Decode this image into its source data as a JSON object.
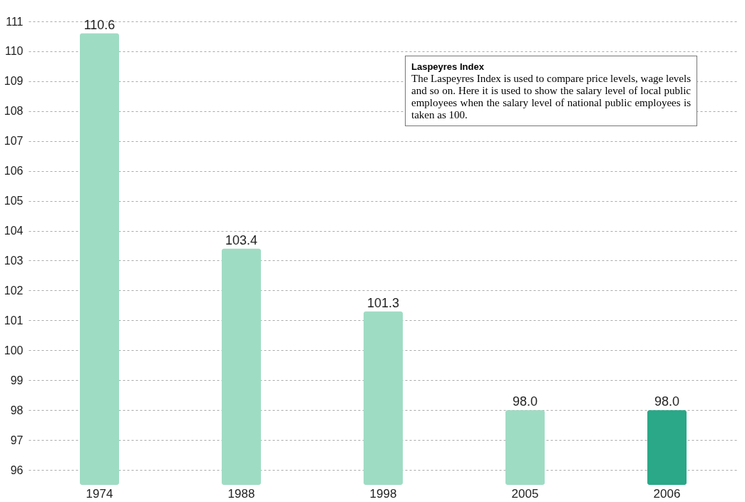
{
  "chart_data": {
    "type": "bar",
    "categories": [
      "1974",
      "1988",
      "1998",
      "2005",
      "2006"
    ],
    "values": [
      110.6,
      103.4,
      101.3,
      98.0,
      98.0
    ],
    "colors": [
      "#9fdcc4",
      "#9fdcc4",
      "#9fdcc4",
      "#9fdcc4",
      "#2aa887"
    ],
    "value_labels": [
      "110.6",
      "103.4",
      "101.3",
      "98.0",
      "98.0"
    ],
    "ylim": [
      95.5,
      111
    ],
    "yticks": [
      96,
      97,
      98,
      99,
      100,
      101,
      102,
      103,
      104,
      105,
      106,
      107,
      108,
      109,
      110,
      111
    ],
    "grid": "y",
    "annotations": [
      "Laspeyres Index",
      "The Laspeyres Index is used to compare price levels, wage levels and so on. Here it is used to show the salary level of local public employees when the salary level of national public employees is taken as 100."
    ]
  }
}
